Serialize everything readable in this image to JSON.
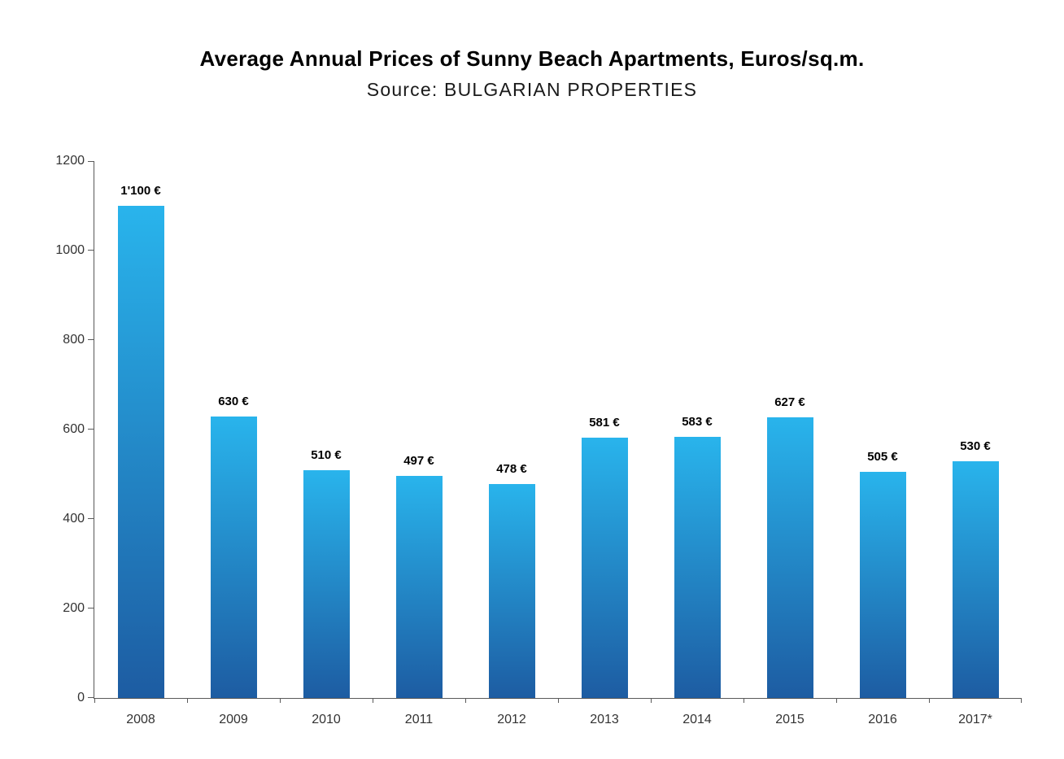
{
  "chart_data": {
    "type": "bar",
    "title": "Average Annual Prices of Sunny Beach Apartments, Euros/sq.m.",
    "subtitle": "Source: BULGARIAN PROPERTIES",
    "categories": [
      "2008",
      "2009",
      "2010",
      "2011",
      "2012",
      "2013",
      "2014",
      "2015",
      "2016",
      "2017*"
    ],
    "values": [
      1100,
      630,
      510,
      497,
      478,
      581,
      583,
      627,
      505,
      530
    ],
    "value_labels": [
      "1'100 €",
      "630 €",
      "510 €",
      "497 €",
      "478 €",
      "581 €",
      "583 €",
      "627 €",
      "505 €",
      "530 €"
    ],
    "xlabel": "",
    "ylabel": "",
    "ylim": [
      0,
      1200
    ],
    "yticks": [
      0,
      200,
      400,
      600,
      800,
      1000,
      1200
    ],
    "grid": false,
    "legend": "none",
    "bar_color_top": "#29b4ec",
    "bar_color_bottom": "#1d5ca2",
    "axis_color": "#595959",
    "tick_label_color": "#333333",
    "value_label_color": "#000000"
  }
}
